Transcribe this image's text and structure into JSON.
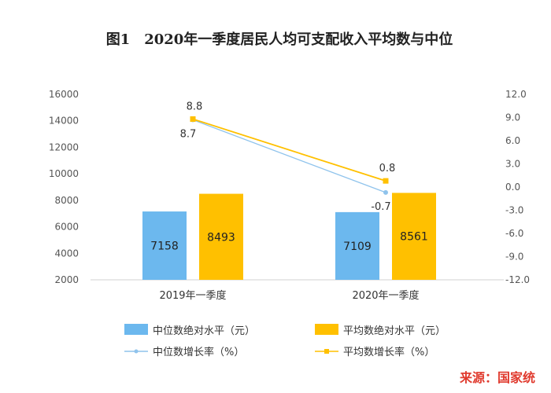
{
  "chart_data": {
    "type": "bar",
    "title": "图1　2020年一季度居民人均可支配收入平均数与中位",
    "categories": [
      "2019年一季度",
      "2020年一季度"
    ],
    "y_left": {
      "min": 2000,
      "max": 16000,
      "step": 2000,
      "ticks": [
        "16000",
        "14000",
        "12000",
        "10000",
        "8000",
        "6000",
        "4000",
        "2000"
      ]
    },
    "y_right": {
      "min": -12.0,
      "max": 12.0,
      "step": 3.0,
      "ticks": [
        "12.0",
        "9.0",
        "6.0",
        "3.0",
        "0.0",
        "-3.0",
        "-6.0",
        "-9.0",
        "-12.0"
      ]
    },
    "series": [
      {
        "name": "中位数绝对水平（元）",
        "kind": "bar",
        "axis": "left",
        "color": "#6cb8ee",
        "values": [
          7158,
          7109
        ],
        "labels": [
          "7158",
          "7109"
        ]
      },
      {
        "name": "平均数绝对水平（元）",
        "kind": "bar",
        "axis": "left",
        "color": "#ffc000",
        "values": [
          8493,
          8561
        ],
        "labels": [
          "8493",
          "8561"
        ]
      },
      {
        "name": "中位数增长率（%）",
        "kind": "line",
        "axis": "right",
        "color": "#8fc3ec",
        "values": [
          8.7,
          -0.7
        ],
        "labels": [
          "8.7",
          "-0.7"
        ]
      },
      {
        "name": "平均数增长率（%）",
        "kind": "line",
        "axis": "right",
        "color": "#ffc000",
        "values": [
          8.8,
          0.8
        ],
        "labels": [
          "8.8",
          "0.8"
        ]
      }
    ],
    "legend_position": "bottom",
    "grid": false
  },
  "source": "来源：国家统"
}
